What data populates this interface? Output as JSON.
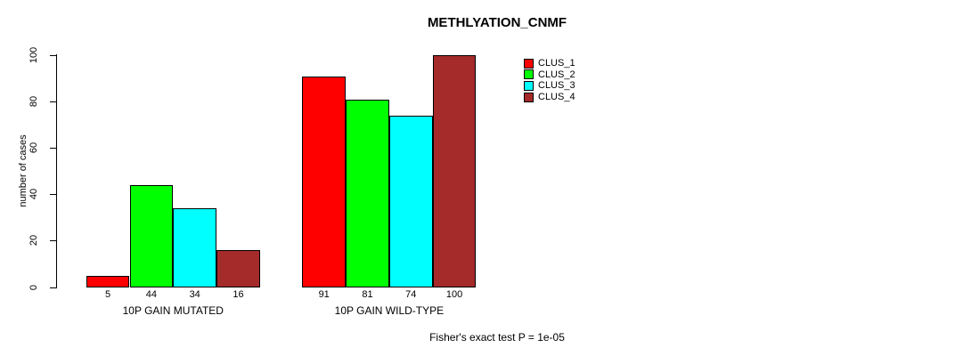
{
  "page": {
    "background_color": "#FFFFFF",
    "text_color": "#000000"
  },
  "chart_data": {
    "type": "bar",
    "title": "METHLYATION_CNMF",
    "xlabel": "",
    "ylabel": "number of cases",
    "ylim": [
      0,
      100
    ],
    "yticks": [
      0,
      20,
      40,
      60,
      80,
      100
    ],
    "grid": false,
    "legend_position": "top-right",
    "bar_border_color": "#000000",
    "bar_value_labels_shown": true,
    "categories": [
      "10P GAIN MUTATED",
      "10P GAIN WILD-TYPE"
    ],
    "series": [
      {
        "name": "CLUS_1",
        "color": "#FF0000",
        "values": [
          5,
          91
        ]
      },
      {
        "name": "CLUS_2",
        "color": "#00FF00",
        "values": [
          44,
          81
        ]
      },
      {
        "name": "CLUS_3",
        "color": "#00FFFF",
        "values": [
          34,
          74
        ]
      },
      {
        "name": "CLUS_4",
        "color": "#A52A2A",
        "values": [
          16,
          100
        ]
      }
    ],
    "annotation": "Fisher's exact test P = 1e-05"
  }
}
